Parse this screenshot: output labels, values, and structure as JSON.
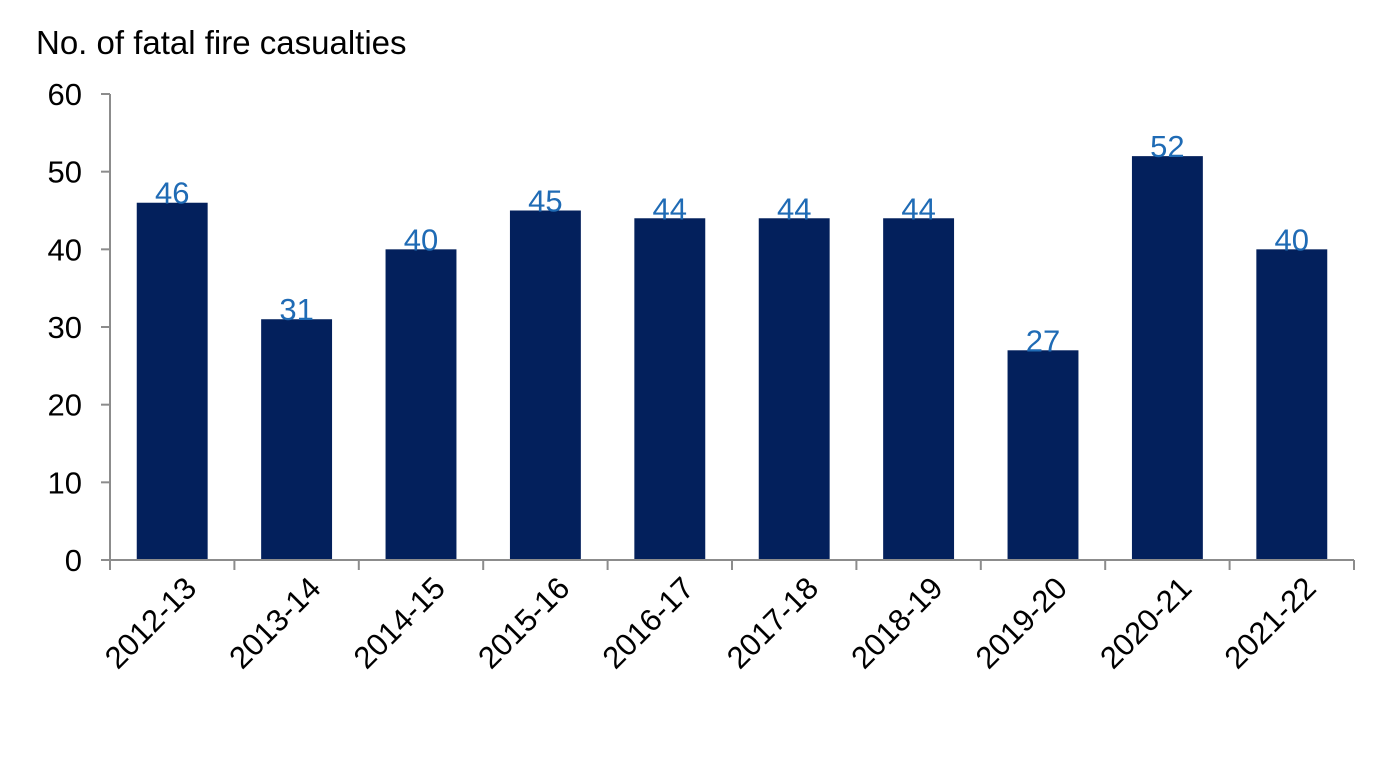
{
  "chart_data": {
    "type": "bar",
    "ylabel": "No. of fatal fire casualties",
    "categories": [
      "2012-13",
      "2013-14",
      "2014-15",
      "2015-16",
      "2016-17",
      "2017-18",
      "2018-19",
      "2019-20",
      "2020-21",
      "2021-22"
    ],
    "values": [
      46,
      31,
      40,
      45,
      44,
      44,
      44,
      27,
      52,
      40
    ],
    "ylim": [
      0,
      60
    ],
    "yticks": [
      0,
      10,
      20,
      30,
      40,
      50,
      60
    ],
    "grid": false,
    "legend": "none",
    "colors": {
      "bar": "#03205c",
      "data_label": "#1f6bb5",
      "axis": "#8c8c8c",
      "text": "#000000"
    }
  }
}
